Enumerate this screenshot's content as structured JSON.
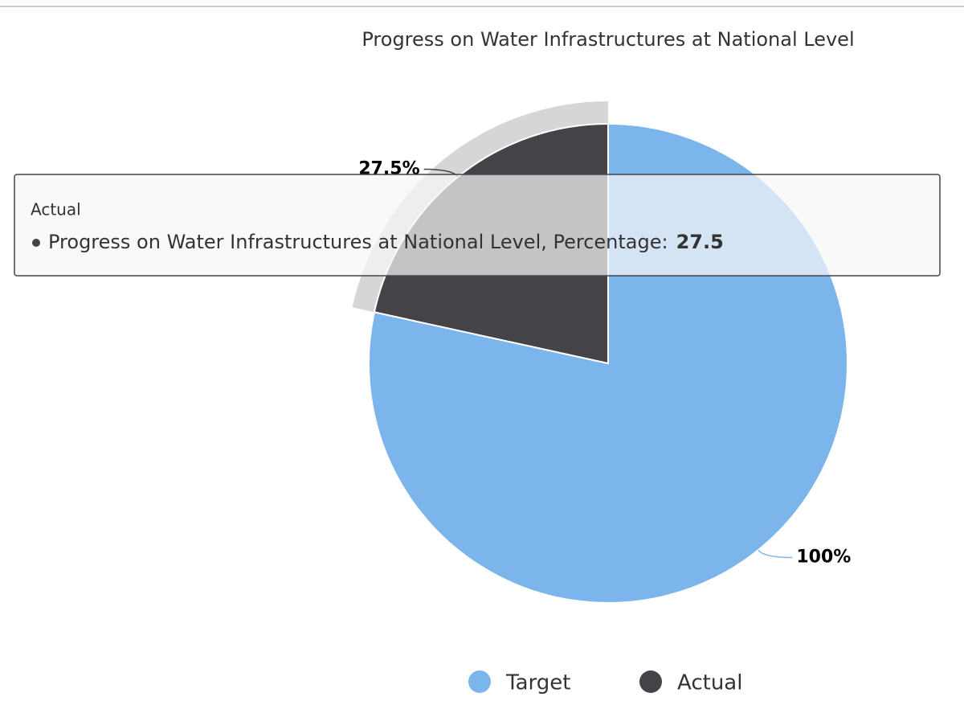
{
  "chart_data": {
    "type": "pie",
    "title": "Progress on Water Infrastructures at National Level",
    "categories": [
      "Target",
      "Actual"
    ],
    "values": [
      100,
      27.5
    ],
    "value_labels": [
      "100%",
      "27.5%"
    ],
    "colors": [
      "#7cb5ec",
      "#434348"
    ],
    "legend": "bottom",
    "tooltip": {
      "text": "Progress on Water Infrastructures at National Level, Percentage:"
    }
  }
}
